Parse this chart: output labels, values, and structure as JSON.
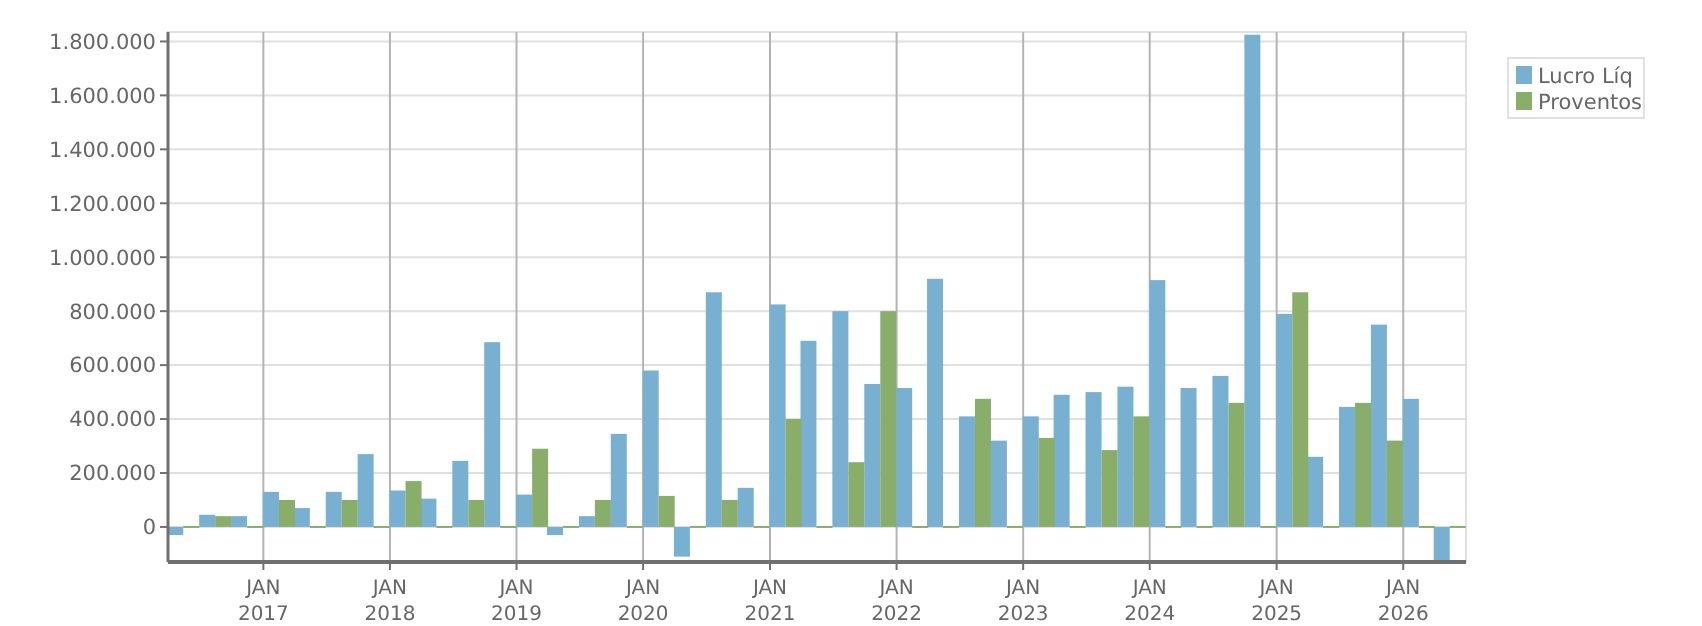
{
  "chart_data": {
    "type": "bar",
    "x": [
      "2016-05-15",
      "2016-08-15",
      "2016-11-15",
      "2017-02-15",
      "2017-05-15",
      "2017-08-15",
      "2017-11-15",
      "2018-02-15",
      "2018-05-15",
      "2018-08-15",
      "2018-11-15",
      "2019-02-15",
      "2019-05-15",
      "2019-08-15",
      "2019-11-15",
      "2020-02-15",
      "2020-05-15",
      "2020-08-15",
      "2020-11-15",
      "2021-02-15",
      "2021-05-15",
      "2021-08-15",
      "2021-11-15",
      "2022-02-15",
      "2022-05-15",
      "2022-08-15",
      "2022-11-15",
      "2023-02-15",
      "2023-05-15",
      "2023-08-15",
      "2023-11-15",
      "2024-02-15",
      "2024-05-15",
      "2024-08-15",
      "2024-11-15",
      "2025-02-15",
      "2025-05-15",
      "2025-08-15",
      "2025-11-15",
      "2026-02-15",
      "2026-05-15"
    ],
    "series": [
      {
        "name": "Lucro Líq",
        "color": "#78b0d2",
        "values": [
          -30000,
          45000,
          40000,
          130000,
          70000,
          130000,
          270000,
          135000,
          105000,
          245000,
          685000,
          120000,
          -30000,
          40000,
          345000,
          580000,
          -110000,
          870000,
          145000,
          825000,
          690000,
          800000,
          530000,
          515000,
          920000,
          410000,
          320000,
          410000,
          490000,
          500000,
          520000,
          915000,
          515000,
          560000,
          1825000,
          790000,
          260000,
          445000,
          750000,
          475000,
          -125000
        ]
      },
      {
        "name": "Proventos",
        "color": "#88ae6a",
        "values": [
          0,
          40000,
          0,
          100000,
          0,
          100000,
          0,
          170000,
          0,
          100000,
          0,
          290000,
          0,
          100000,
          0,
          115000,
          0,
          100000,
          0,
          400000,
          0,
          240000,
          800000,
          0,
          0,
          475000,
          0,
          330000,
          0,
          285000,
          410000,
          0,
          0,
          460000,
          0,
          870000,
          0,
          460000,
          320000,
          0,
          0
        ]
      }
    ],
    "xlim": [
      "2016-04",
      "2026-07"
    ],
    "xticks": [
      {
        "value": "2017-01",
        "label": "JAN 2017"
      },
      {
        "value": "2018-01",
        "label": "JAN 2018"
      },
      {
        "value": "2019-01",
        "label": "JAN 2019"
      },
      {
        "value": "2020-01",
        "label": "JAN 2020"
      },
      {
        "value": "2021-01",
        "label": "JAN 2021"
      },
      {
        "value": "2022-01",
        "label": "JAN 2022"
      },
      {
        "value": "2023-01",
        "label": "JAN 2023"
      },
      {
        "value": "2024-01",
        "label": "JAN 2024"
      },
      {
        "value": "2025-01",
        "label": "JAN 2025"
      },
      {
        "value": "2026-01",
        "label": "JAN 2026"
      }
    ],
    "ylim": [
      -130000,
      1835000
    ],
    "yticks": [
      0,
      {
        "value": 200000,
        "label": "200.000"
      },
      {
        "value": 400000,
        "label": "400.000"
      },
      {
        "value": 600000,
        "label": "600.000"
      },
      {
        "value": 800000,
        "label": "800.000"
      },
      {
        "value": 1000000,
        "label": "1.000.000"
      },
      {
        "value": 1200000,
        "label": "1.200.000"
      },
      {
        "value": 1400000,
        "label": "1.400.000"
      },
      {
        "value": 1600000,
        "label": "1.600.000"
      },
      {
        "value": 1800000,
        "label": "1.800.000"
      }
    ],
    "grid": true,
    "legend": "top right"
  }
}
